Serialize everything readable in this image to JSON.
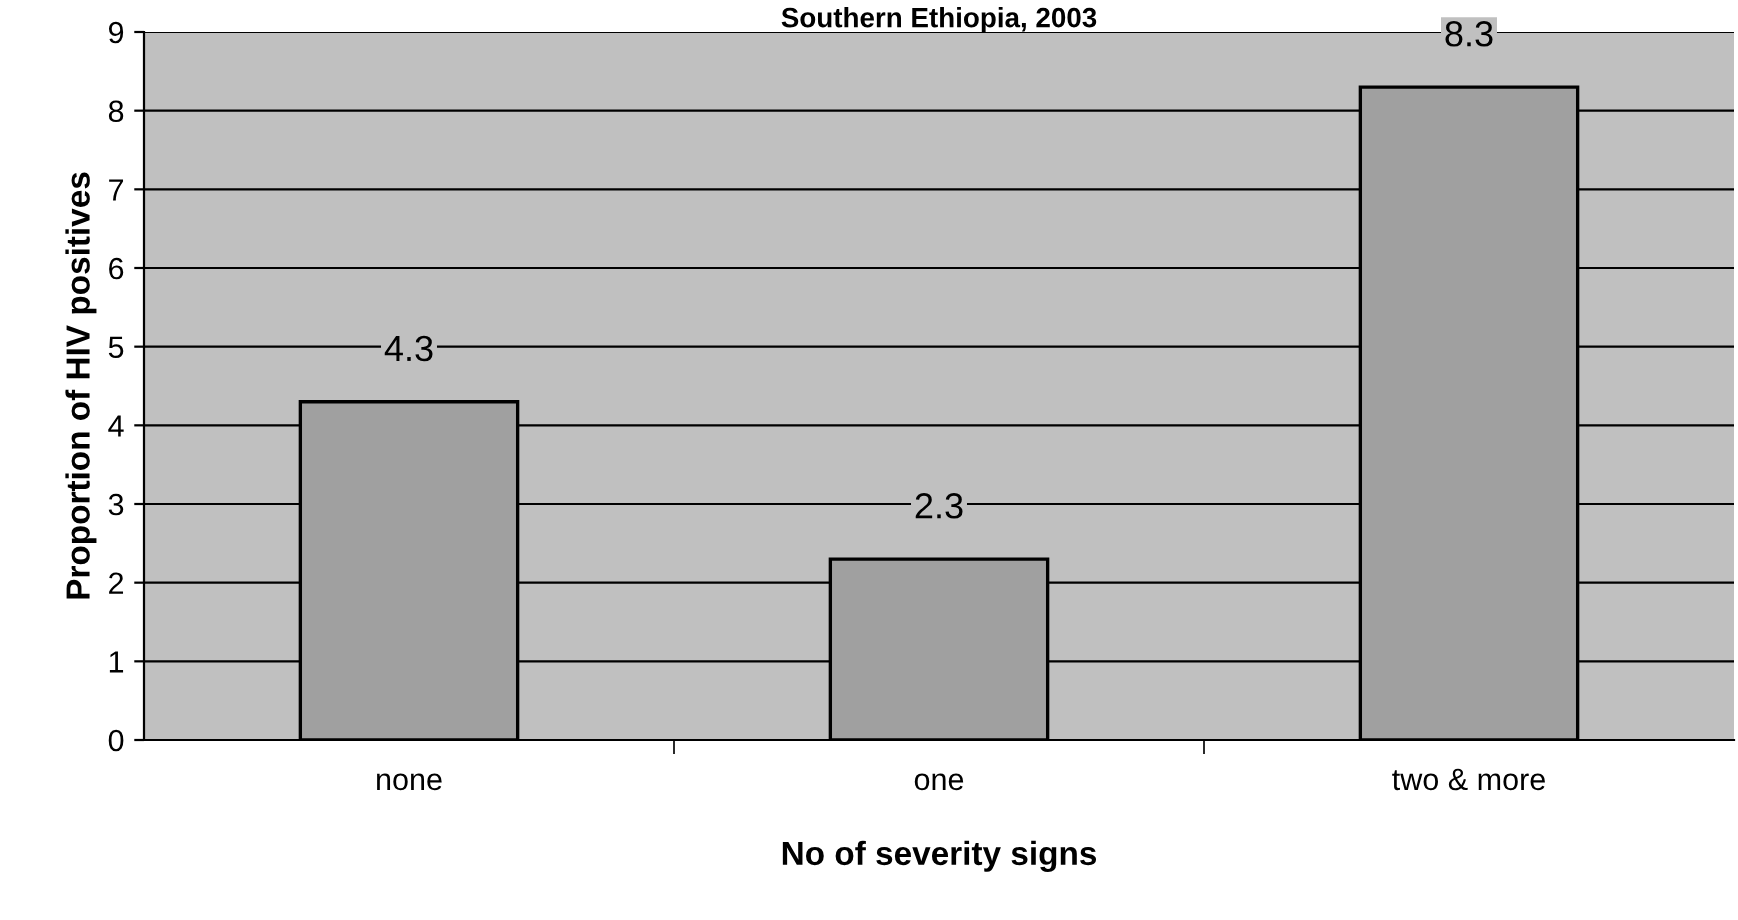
{
  "chart_data": {
    "type": "bar",
    "title": "Southern Ethiopia, 2003",
    "xlabel": "No of severity signs",
    "ylabel": "Proportion of HIV positives",
    "categories": [
      "none",
      "one",
      "two & more"
    ],
    "values": [
      4.3,
      2.3,
      8.3
    ],
    "color": "#a0a0a0",
    "ylim": [
      0,
      9
    ],
    "yticks": [
      0,
      1,
      2,
      3,
      4,
      5,
      6,
      7,
      8,
      9
    ],
    "grid": "y",
    "data_labels": true,
    "legend": false
  }
}
